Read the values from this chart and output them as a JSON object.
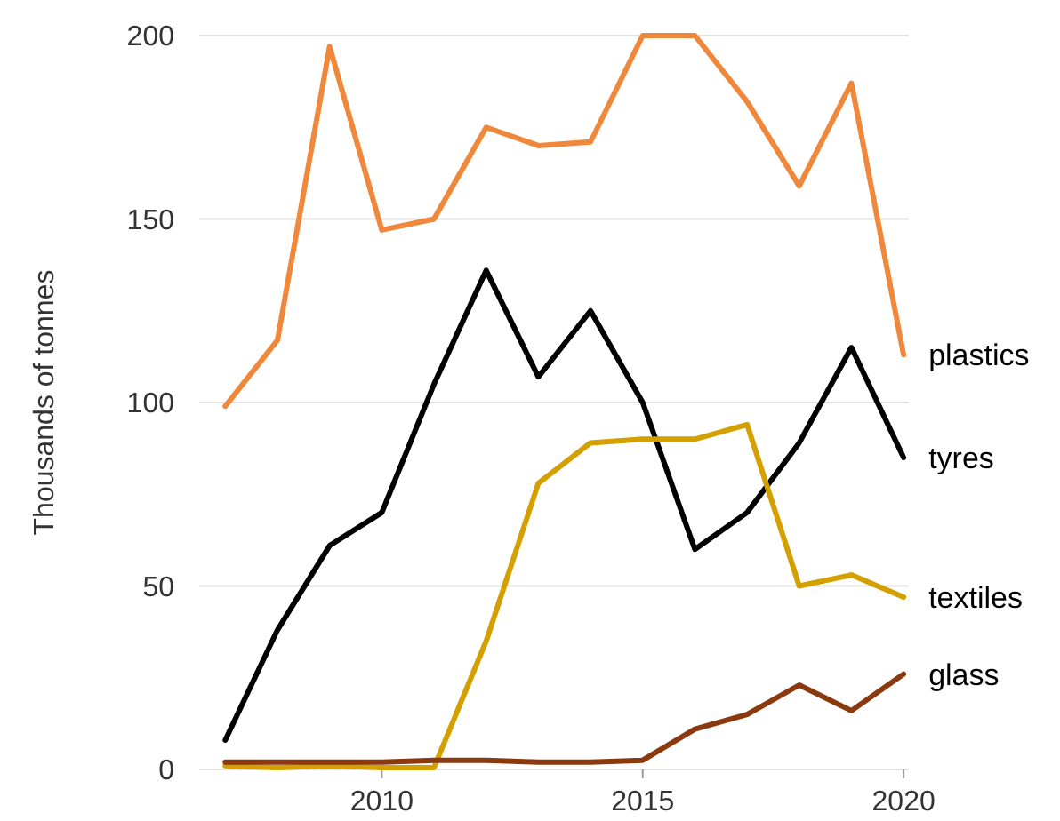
{
  "chart_data": {
    "type": "line",
    "ylabel": "Thousands of tonnes",
    "x": [
      2007,
      2008,
      2009,
      2010,
      2011,
      2012,
      2013,
      2014,
      2015,
      2016,
      2017,
      2018,
      2019,
      2020
    ],
    "xlim": [
      2006.5,
      2020.1
    ],
    "xticks": [
      2010,
      2015,
      2020
    ],
    "ylim": [
      0,
      200
    ],
    "yticks": [
      0,
      50,
      100,
      150,
      200
    ],
    "grid": "y",
    "marker": "none",
    "line_style": "solid",
    "series": [
      {
        "name": "plastics",
        "color": "#f0883c",
        "values": [
          99,
          117,
          197,
          147,
          150,
          175,
          170,
          171,
          200,
          200,
          182,
          159,
          187,
          113
        ]
      },
      {
        "name": "tyres",
        "color": "#000000",
        "values": [
          8,
          38,
          61,
          70,
          105,
          136,
          107,
          125,
          100,
          60,
          70,
          89,
          115,
          85
        ]
      },
      {
        "name": "textiles",
        "color": "#d4a000",
        "values": [
          1,
          0.5,
          1,
          0.5,
          0.5,
          35,
          78,
          89,
          90,
          90,
          94,
          50,
          53,
          47
        ]
      },
      {
        "name": "glass",
        "color": "#8b3a0f",
        "values": [
          2,
          2,
          2,
          2,
          2.5,
          2.5,
          2,
          2,
          2.5,
          11,
          15,
          23,
          16,
          26
        ]
      }
    ]
  }
}
